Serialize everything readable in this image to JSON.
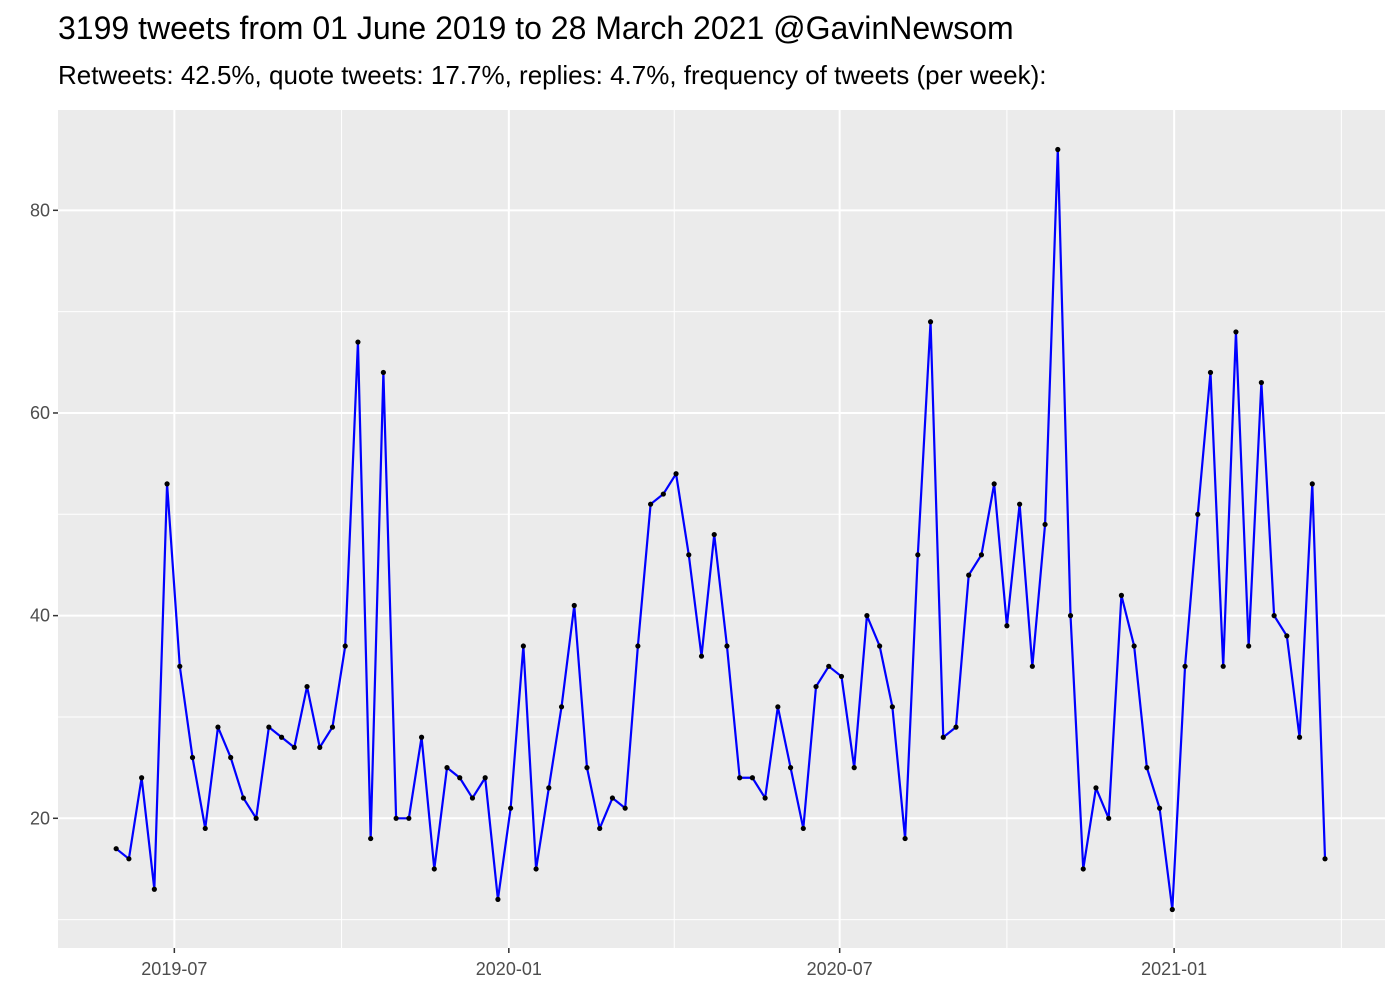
{
  "chart_data": {
    "type": "line",
    "title": "3199 tweets from 01 June 2019 to 28 March 2021 @GavinNewsom",
    "subtitle": "Retweets: 42.5%, quote tweets: 17.7%, replies: 4.7%, frequency of tweets (per week):",
    "xlabel": "",
    "ylabel": "",
    "x_ticks": [
      "2019-07",
      "2020-01",
      "2020-07",
      "2021-01"
    ],
    "y_ticks": [
      20,
      40,
      60,
      80
    ],
    "xlim": [
      "2019-04-28",
      "2021-04-27"
    ],
    "ylim": [
      7.2,
      89.9
    ],
    "grid": true,
    "line_color": "#0000ff",
    "point_color": "#000000",
    "panel_background": "#ebebeb",
    "x": [
      "2019-05-30",
      "2019-06-06",
      "2019-06-13",
      "2019-06-20",
      "2019-06-27",
      "2019-07-04",
      "2019-07-11",
      "2019-07-18",
      "2019-07-25",
      "2019-08-01",
      "2019-08-08",
      "2019-08-15",
      "2019-08-22",
      "2019-08-29",
      "2019-09-05",
      "2019-09-12",
      "2019-09-19",
      "2019-09-26",
      "2019-10-03",
      "2019-10-10",
      "2019-10-17",
      "2019-10-24",
      "2019-10-31",
      "2019-11-07",
      "2019-11-14",
      "2019-11-21",
      "2019-11-28",
      "2019-12-05",
      "2019-12-12",
      "2019-12-19",
      "2019-12-26",
      "2020-01-02",
      "2020-01-09",
      "2020-01-16",
      "2020-01-23",
      "2020-01-30",
      "2020-02-06",
      "2020-02-13",
      "2020-02-20",
      "2020-02-27",
      "2020-03-05",
      "2020-03-12",
      "2020-03-19",
      "2020-03-26",
      "2020-04-02",
      "2020-04-09",
      "2020-04-16",
      "2020-04-23",
      "2020-04-30",
      "2020-05-07",
      "2020-05-14",
      "2020-05-21",
      "2020-05-28",
      "2020-06-04",
      "2020-06-11",
      "2020-06-18",
      "2020-06-25",
      "2020-07-02",
      "2020-07-09",
      "2020-07-16",
      "2020-07-23",
      "2020-07-30",
      "2020-08-06",
      "2020-08-13",
      "2020-08-20",
      "2020-08-27",
      "2020-09-03",
      "2020-09-10",
      "2020-09-17",
      "2020-09-24",
      "2020-10-01",
      "2020-10-08",
      "2020-10-15",
      "2020-10-22",
      "2020-10-29",
      "2020-11-05",
      "2020-11-12",
      "2020-11-19",
      "2020-11-26",
      "2020-12-03",
      "2020-12-10",
      "2020-12-17",
      "2020-12-24",
      "2020-12-31",
      "2021-01-07",
      "2021-01-14",
      "2021-01-21",
      "2021-01-28",
      "2021-02-04",
      "2021-02-11",
      "2021-02-18",
      "2021-02-25",
      "2021-03-04",
      "2021-03-11",
      "2021-03-18",
      "2021-03-25"
    ],
    "values": [
      17,
      16,
      24,
      13,
      53,
      35,
      26,
      19,
      29,
      26,
      22,
      20,
      29,
      28,
      27,
      33,
      27,
      29,
      37,
      67,
      18,
      64,
      20,
      20,
      28,
      15,
      25,
      24,
      22,
      24,
      12,
      21,
      37,
      15,
      23,
      31,
      41,
      25,
      19,
      22,
      21,
      37,
      51,
      52,
      54,
      46,
      36,
      48,
      37,
      24,
      24,
      22,
      31,
      25,
      19,
      33,
      35,
      34,
      25,
      40,
      37,
      31,
      18,
      46,
      69,
      28,
      29,
      44,
      46,
      53,
      39,
      51,
      35,
      49,
      86,
      40,
      15,
      23,
      20,
      42,
      37,
      25,
      21,
      11,
      35,
      50,
      64,
      35,
      68,
      37,
      63,
      40,
      38,
      28,
      53,
      16
    ]
  }
}
